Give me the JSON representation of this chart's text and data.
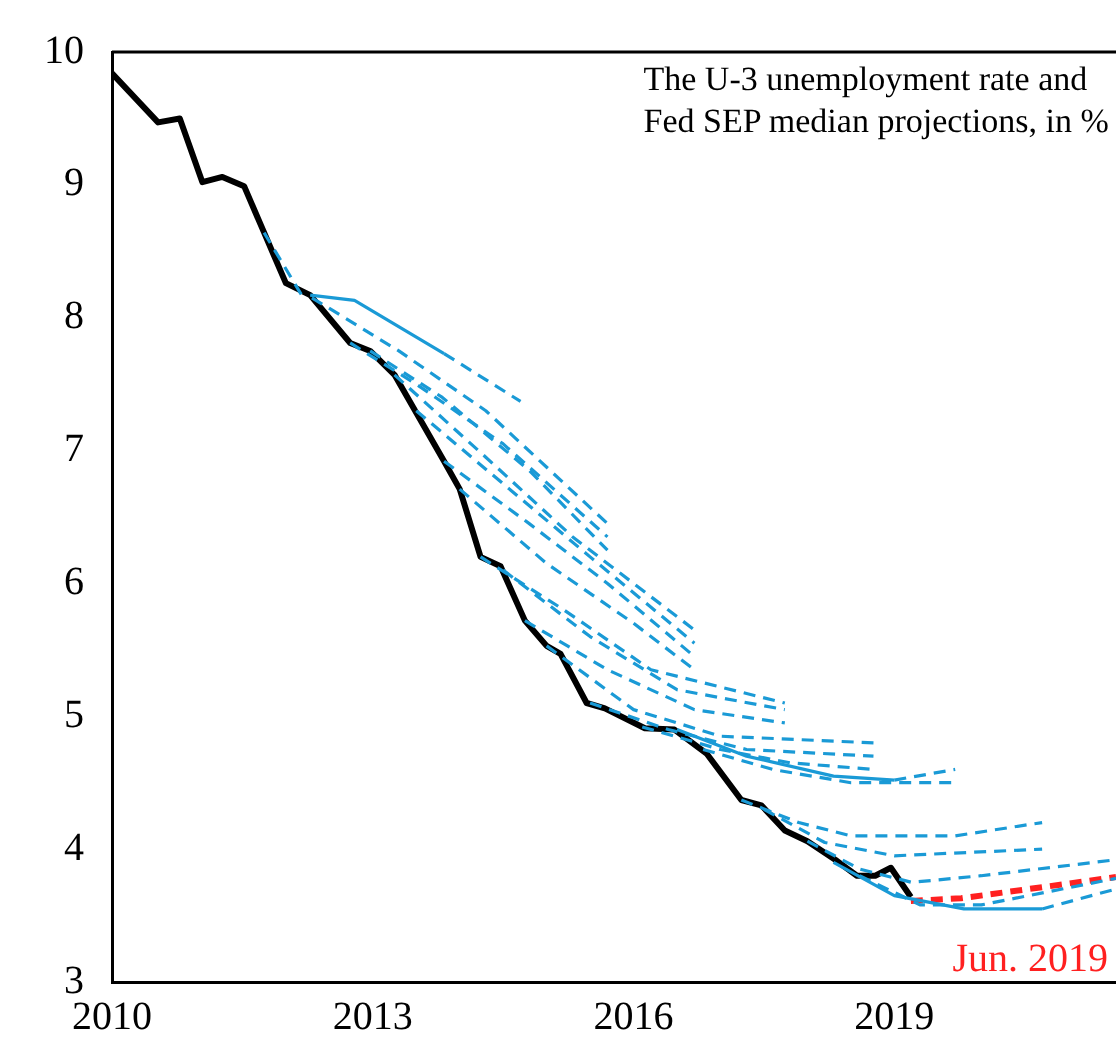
{
  "chart_data": {
    "type": "line",
    "title": "The U-3 unemployment rate and\nFed SEP median projections, in %",
    "xlim": [
      2010,
      2021.55
    ],
    "xticks": [
      2010,
      2013,
      2016,
      2019
    ],
    "ylim": [
      3,
      10
    ],
    "yticks": [
      3,
      4,
      5,
      6,
      7,
      8,
      9,
      10
    ],
    "grid": false,
    "legend": false,
    "marker": "none",
    "series": [
      {
        "color": "#1a9ad6",
        "line_style": "dashed",
        "x": [
          2011.75,
          2012.2
        ],
        "values": [
          8.64,
          8.15
        ]
      },
      {
        "color": "#1a9ad6",
        "line_style": "solid",
        "x": [
          2012.28,
          2012.79,
          2013.82
        ],
        "values": [
          8.17,
          8.13,
          7.73
        ]
      },
      {
        "color": "#1a9ad6",
        "line_style": "dashed",
        "x": [
          2013.82,
          2014.7
        ],
        "values": [
          7.73,
          7.37
        ]
      },
      {
        "color": "#1a9ad6",
        "line_style": "dashed",
        "x": [
          2012.3,
          2013.3,
          2014.3,
          2015.7
        ],
        "values": [
          8.15,
          7.75,
          7.3,
          6.45
        ]
      },
      {
        "color": "#1a9ad6",
        "line_style": "dashed",
        "x": [
          2012.74,
          2013.5,
          2014.5,
          2015.7
        ],
        "values": [
          7.81,
          7.5,
          7.05,
          6.35
        ]
      },
      {
        "color": "#1a9ad6",
        "line_style": "dashed",
        "x": [
          2012.97,
          2013.8,
          2014.8,
          2015.7
        ],
        "values": [
          7.75,
          7.4,
          6.85,
          6.25
        ]
      },
      {
        "color": "#1a9ad6",
        "line_style": "dashed",
        "x": [
          2013.25,
          2014.3,
          2015.3,
          2016.7
        ],
        "values": [
          7.57,
          6.95,
          6.35,
          5.65
        ]
      },
      {
        "color": "#1a9ad6",
        "line_style": "dashed",
        "x": [
          2013.5,
          2014.5,
          2015.5,
          2016.7
        ],
        "values": [
          7.3,
          6.75,
          6.2,
          5.55
        ]
      },
      {
        "color": "#1a9ad6",
        "line_style": "dashed",
        "x": [
          2013.82,
          2014.8,
          2015.7,
          2016.7
        ],
        "values": [
          6.92,
          6.45,
          6.0,
          5.45
        ]
      },
      {
        "color": "#1a9ad6",
        "line_style": "dashed",
        "x": [
          2014.0,
          2015.0,
          2016.0,
          2016.7
        ],
        "values": [
          6.71,
          6.15,
          5.7,
          5.35
        ]
      },
      {
        "color": "#1a9ad6",
        "line_style": "dashed",
        "x": [
          2014.24,
          2015.2,
          2016.2,
          2017.74
        ],
        "values": [
          6.2,
          5.8,
          5.35,
          5.1
        ]
      },
      {
        "color": "#1a9ad6",
        "line_style": "dashed",
        "x": [
          2014.5,
          2015.5,
          2016.5,
          2017.74
        ],
        "values": [
          6.1,
          5.6,
          5.2,
          5.05
        ]
      },
      {
        "color": "#1a9ad6",
        "line_style": "dashed",
        "x": [
          2014.75,
          2015.7,
          2016.7,
          2017.74
        ],
        "values": [
          5.72,
          5.35,
          5.05,
          4.95
        ]
      },
      {
        "color": "#1a9ad6",
        "line_style": "dashed",
        "x": [
          2015.0,
          2016.0,
          2017.0,
          2018.76
        ],
        "values": [
          5.53,
          5.05,
          4.85,
          4.8
        ]
      },
      {
        "color": "#1a9ad6",
        "line_style": "dashed",
        "x": [
          2015.5,
          2016.4,
          2017.3,
          2018.76
        ],
        "values": [
          5.1,
          4.9,
          4.75,
          4.7
        ]
      },
      {
        "color": "#1a9ad6",
        "line_style": "dashed",
        "x": [
          2016.1,
          2017.0,
          2017.8,
          2018.76
        ],
        "values": [
          4.92,
          4.75,
          4.65,
          4.6
        ]
      },
      {
        "color": "#1a9ad6",
        "line_style": "solid",
        "x": [
          2016.5,
          2017.3,
          2018.3,
          2019.0
        ],
        "values": [
          4.9,
          4.7,
          4.55,
          4.52
        ]
      },
      {
        "color": "#1a9ad6",
        "line_style": "dashed",
        "x": [
          2019.0,
          2019.7
        ],
        "values": [
          4.52,
          4.6
        ]
      },
      {
        "color": "#1a9ad6",
        "line_style": "dashed",
        "x": [
          2016.8,
          2017.6,
          2018.5,
          2019.7
        ],
        "values": [
          4.75,
          4.6,
          4.5,
          4.5
        ]
      },
      {
        "color": "#1a9ad6",
        "line_style": "dashed",
        "x": [
          2017.24,
          2017.9,
          2018.5,
          2019.7,
          2020.7
        ],
        "values": [
          4.37,
          4.2,
          4.1,
          4.1,
          4.2
        ]
      },
      {
        "color": "#1a9ad6",
        "line_style": "dashed",
        "x": [
          2017.5,
          2018.2,
          2019.0,
          2020.7
        ],
        "values": [
          4.3,
          4.05,
          3.95,
          4.0
        ]
      },
      {
        "color": "#1a9ad6",
        "line_style": "dashed",
        "x": [
          2018.0,
          2018.6,
          2019.2,
          2020.0,
          2021.55
        ],
        "values": [
          4.06,
          3.85,
          3.75,
          3.8,
          3.92
        ]
      },
      {
        "color": "#1a9ad6",
        "line_style": "solid",
        "x": [
          2018.3,
          2019.0,
          2019.8,
          2020.7
        ],
        "values": [
          3.9,
          3.65,
          3.55,
          3.55
        ]
      },
      {
        "color": "#1a9ad6",
        "line_style": "dashed",
        "x": [
          2020.7,
          2021.55
        ],
        "values": [
          3.55,
          3.7
        ]
      },
      {
        "color": "#1a9ad6",
        "line_style": "dashed",
        "x": [
          2018.6,
          2019.3,
          2020.0,
          2021.55
        ],
        "values": [
          3.8,
          3.58,
          3.58,
          3.78
        ]
      },
      {
        "color": "#000000",
        "line_style": "solid",
        "x": [
          2010.0,
          2010.53,
          2010.78,
          2011.04,
          2011.27,
          2011.52,
          2011.75,
          2012.0,
          2012.28,
          2012.74,
          2012.97,
          2013.25,
          2013.82,
          2014.0,
          2014.24,
          2014.47,
          2014.75,
          2015.0,
          2015.16,
          2015.46,
          2015.67,
          2016.13,
          2016.47,
          2016.84,
          2017.24,
          2017.47,
          2017.74,
          2018.0,
          2018.32,
          2018.57,
          2018.78,
          2018.96,
          2019.19
        ],
        "values": [
          9.84,
          9.47,
          9.5,
          9.02,
          9.06,
          8.99,
          8.64,
          8.26,
          8.17,
          7.81,
          7.75,
          7.57,
          6.92,
          6.71,
          6.2,
          6.13,
          5.72,
          5.53,
          5.47,
          5.1,
          5.06,
          4.91,
          4.9,
          4.72,
          4.37,
          4.33,
          4.14,
          4.06,
          3.92,
          3.8,
          3.8,
          3.86,
          3.64
        ]
      },
      {
        "name": "Jun. 2019",
        "color": "#ff2020",
        "line_style": "dashed",
        "x": [
          2019.19,
          2019.77,
          2021.55
        ],
        "values": [
          3.61,
          3.63,
          3.79
        ]
      }
    ]
  }
}
